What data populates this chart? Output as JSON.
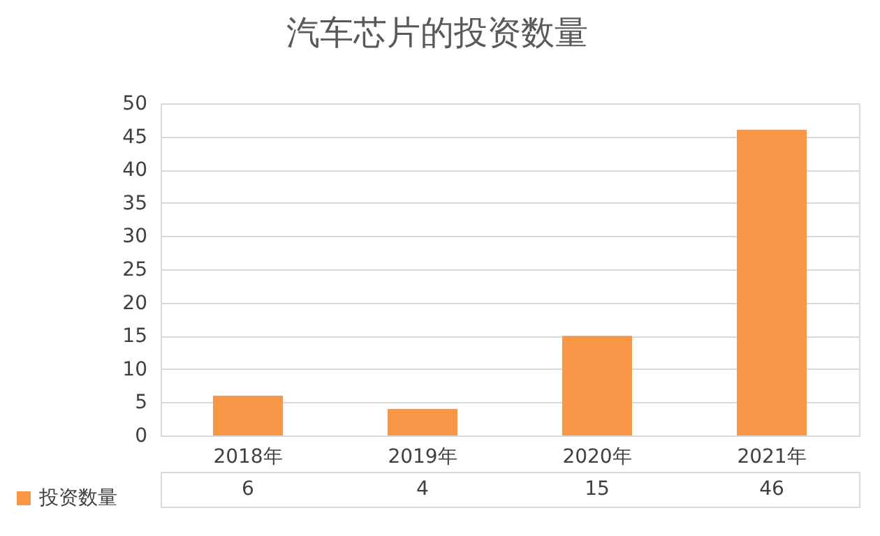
{
  "chart_data": {
    "type": "bar",
    "title": "汽车芯片的投资数量",
    "categories": [
      "2018年",
      "2019年",
      "2020年",
      "2021年"
    ],
    "series": [
      {
        "name": "投资数量",
        "color": "#f79646",
        "values": [
          6,
          4,
          15,
          46
        ]
      }
    ],
    "ylim": [
      0,
      50
    ],
    "yticks": [
      0,
      5,
      10,
      15,
      20,
      25,
      30,
      35,
      40,
      45,
      50
    ],
    "grid": "y",
    "legend": "bottom left",
    "data_labels": true
  }
}
